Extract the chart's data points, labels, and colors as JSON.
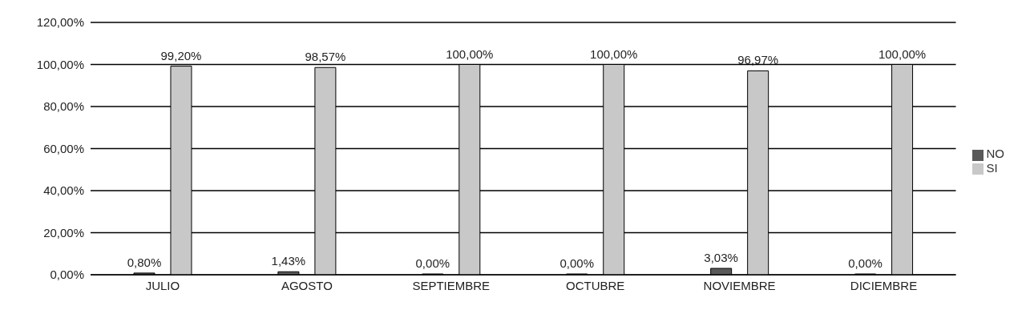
{
  "chart_data": {
    "type": "bar",
    "categories": [
      "JULIO",
      "AGOSTO",
      "SEPTIEMBRE",
      "OCTUBRE",
      "NOVIEMBRE",
      "DICIEMBRE"
    ],
    "series": [
      {
        "name": "NO",
        "color": "#595959",
        "values": [
          0.8,
          1.43,
          0,
          0,
          3.03,
          0
        ],
        "value_labels": [
          "0,80%",
          "1,43%",
          "0,00%",
          "0,00%",
          "3,03%",
          "0,00%"
        ]
      },
      {
        "name": "SI",
        "color": "#c8c8c8",
        "values": [
          99.2,
          98.57,
          100,
          100,
          96.97,
          100
        ],
        "value_labels": [
          "99,20%",
          "98,57%",
          "100,00%",
          "100,00%",
          "96,97%",
          "100,00%"
        ]
      }
    ],
    "ylim": [
      0,
      120
    ],
    "yticks": [
      {
        "value": 0,
        "label": "0,00%"
      },
      {
        "value": 20,
        "label": "20,00%"
      },
      {
        "value": 40,
        "label": "40,00%"
      },
      {
        "value": 60,
        "label": "60,00%"
      },
      {
        "value": 80,
        "label": "80,00%"
      },
      {
        "value": 100,
        "label": "100,00%"
      },
      {
        "value": 120,
        "label": "120,00%"
      }
    ],
    "grid": "y",
    "legend": "right"
  }
}
